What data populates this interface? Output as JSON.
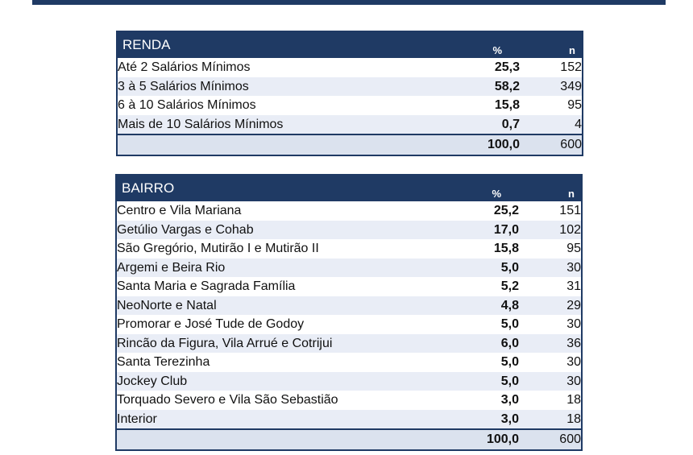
{
  "renda": {
    "title": "RENDA",
    "col_pct": "%",
    "col_n": "n",
    "rows": [
      {
        "label": "Até 2 Salários Mínimos",
        "pct": "25,3",
        "n": "152"
      },
      {
        "label": "3 à 5 Salários Mínimos",
        "pct": "58,2",
        "n": "349"
      },
      {
        "label": "6 à 10 Salários Mínimos",
        "pct": "15,8",
        "n": "95"
      },
      {
        "label": "Mais de 10 Salários Mínimos",
        "pct": "0,7",
        "n": "4"
      }
    ],
    "total": {
      "pct": "100,0",
      "n": "600"
    }
  },
  "bairro": {
    "title": "BAIRRO",
    "col_pct": "%",
    "col_n": "n",
    "rows": [
      {
        "label": "Centro e Vila Mariana",
        "pct": "25,2",
        "n": "151"
      },
      {
        "label": "Getúlio Vargas e Cohab",
        "pct": "17,0",
        "n": "102"
      },
      {
        "label": "São Gregório, Mutirão I e Mutirão II",
        "pct": "15,8",
        "n": "95"
      },
      {
        "label": "Argemi e Beira Rio",
        "pct": "5,0",
        "n": "30"
      },
      {
        "label": "Santa Maria e Sagrada Família",
        "pct": "5,2",
        "n": "31"
      },
      {
        "label": "NeoNorte e Natal",
        "pct": "4,8",
        "n": "29"
      },
      {
        "label": "Promorar e José Tude de Godoy",
        "pct": "5,0",
        "n": "30"
      },
      {
        "label": "Rincão da Figura, Vila Arrué e Cotrijui",
        "pct": "6,0",
        "n": "36"
      },
      {
        "label": "Santa Terezinha",
        "pct": "5,0",
        "n": "30"
      },
      {
        "label": "Jockey Club",
        "pct": "5,0",
        "n": "30"
      },
      {
        "label": "Torquado Severo e Vila São Sebastião",
        "pct": "3,0",
        "n": "18"
      },
      {
        "label": "Interior",
        "pct": "3,0",
        "n": "18"
      }
    ],
    "total": {
      "pct": "100,0",
      "n": "600"
    }
  },
  "colors": {
    "header_bg": "#1f3a64",
    "stripe": "#e9edf6",
    "total_bg": "#dbe2ee"
  }
}
